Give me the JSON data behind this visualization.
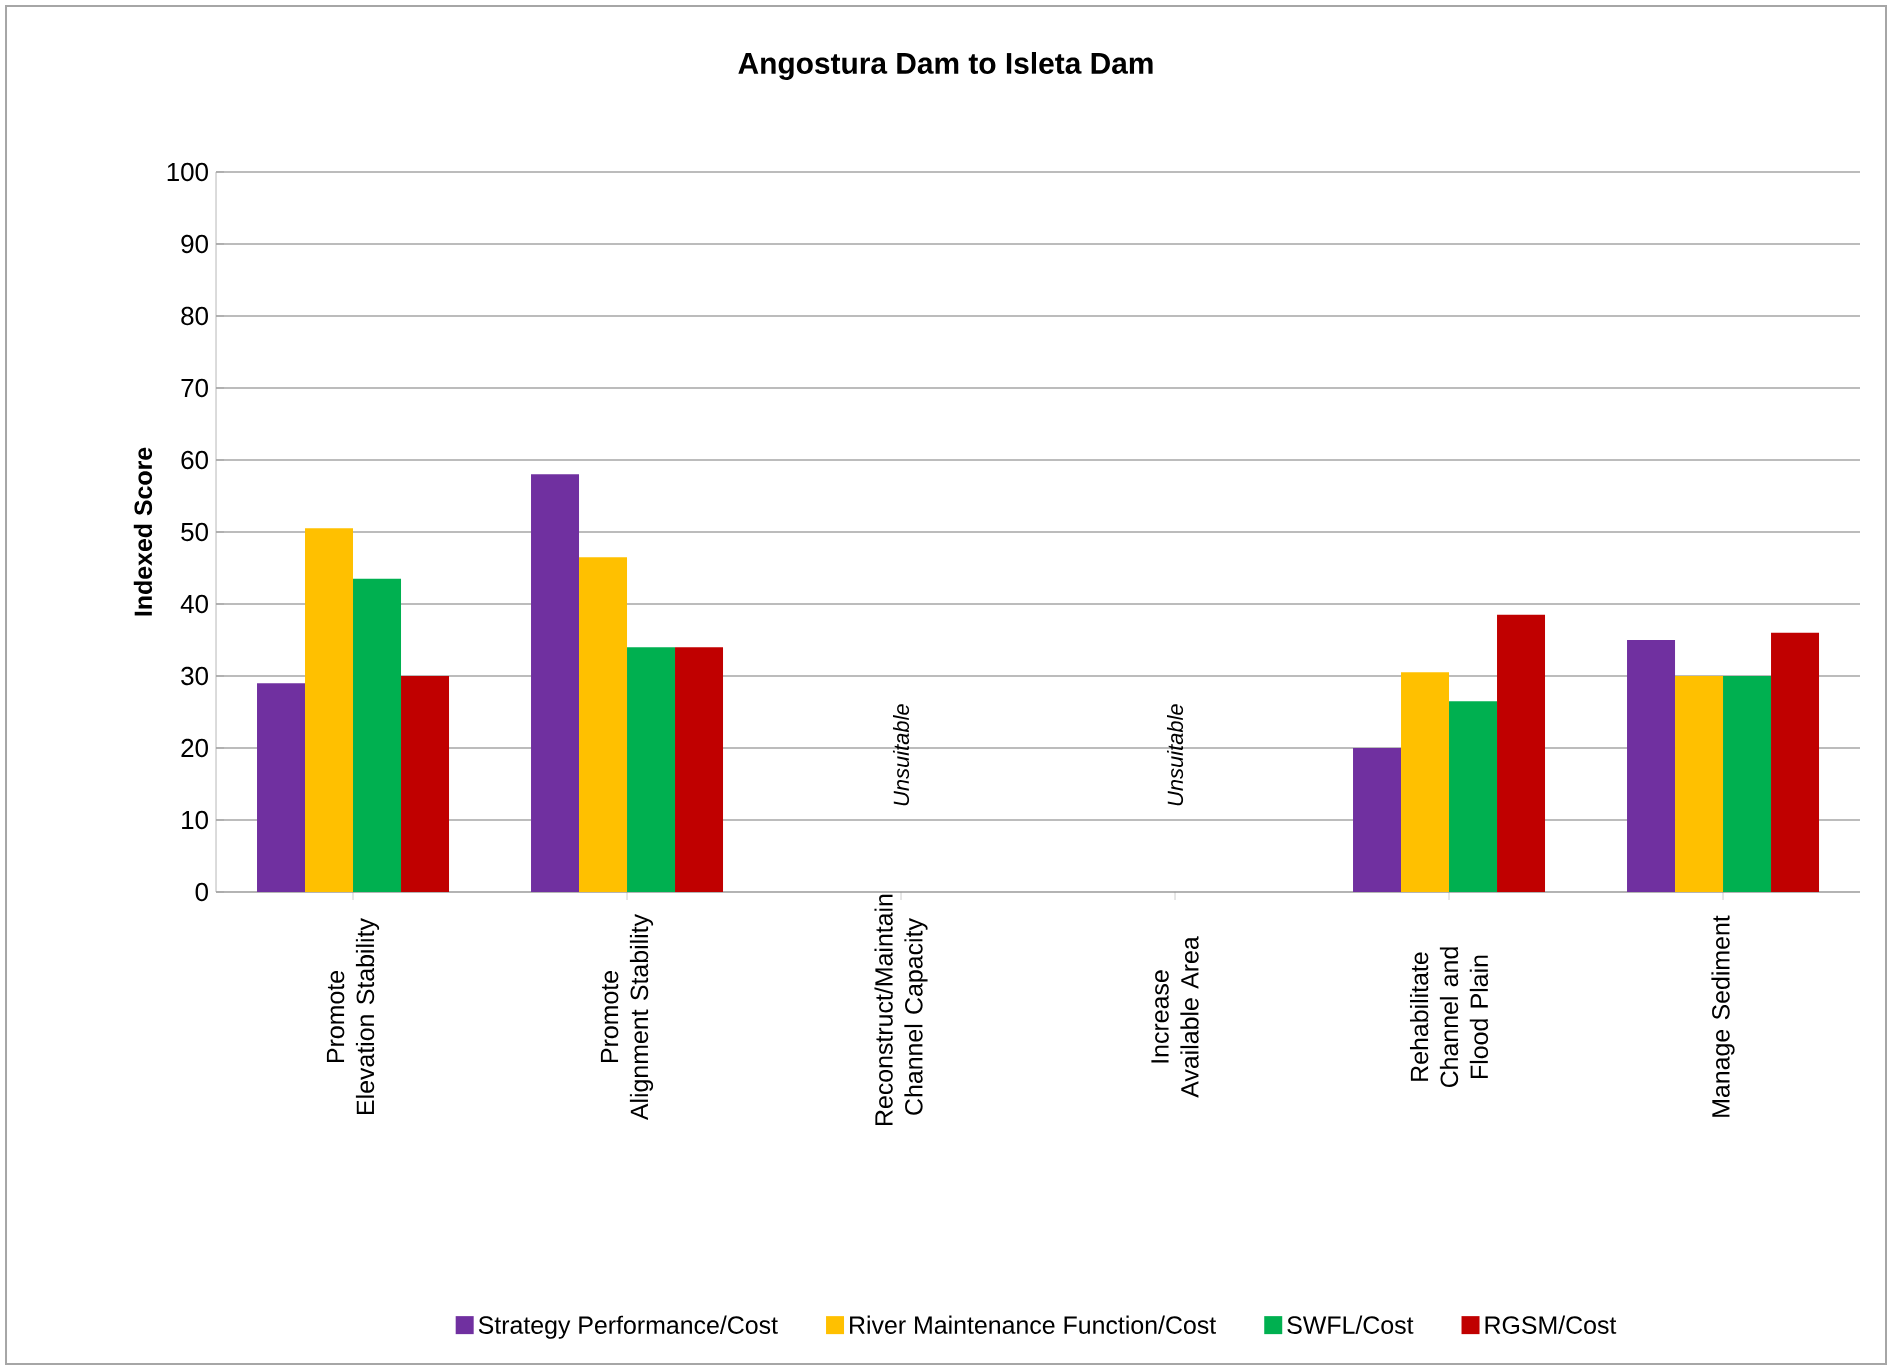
{
  "chart_data": {
    "type": "bar",
    "title": "Angostura Dam to Isleta Dam",
    "ylabel": "Indexed Score",
    "categories": [
      "Promote Elevation Stability",
      "Promote Alignment Stability",
      "Reconstruct/Maintain Channel Capacity",
      "Increase Available Area",
      "Rehabilitate Channel and Flood Plain",
      "Manage Sediment"
    ],
    "series": [
      {
        "name": "Strategy Performance/Cost",
        "color": "#7030a0",
        "values": [
          29,
          58,
          null,
          null,
          20,
          35
        ]
      },
      {
        "name": "River Maintenance Function/Cost",
        "color": "#ffc000",
        "values": [
          50.5,
          46.5,
          null,
          null,
          30.5,
          30
        ]
      },
      {
        "name": "SWFL/Cost",
        "color": "#00b050",
        "values": [
          43.5,
          34,
          null,
          null,
          26.5,
          30
        ]
      },
      {
        "name": "RGSM/Cost",
        "color": "#c00000",
        "values": [
          30,
          34,
          null,
          null,
          38.5,
          36
        ]
      }
    ],
    "ylim": [
      0,
      100
    ],
    "yticks": [
      0,
      10,
      20,
      30,
      40,
      50,
      60,
      70,
      80,
      90,
      100
    ],
    "grid": "y",
    "legend": "bottom",
    "annotations": [
      "Unsuitable",
      "Unsuitable"
    ]
  }
}
